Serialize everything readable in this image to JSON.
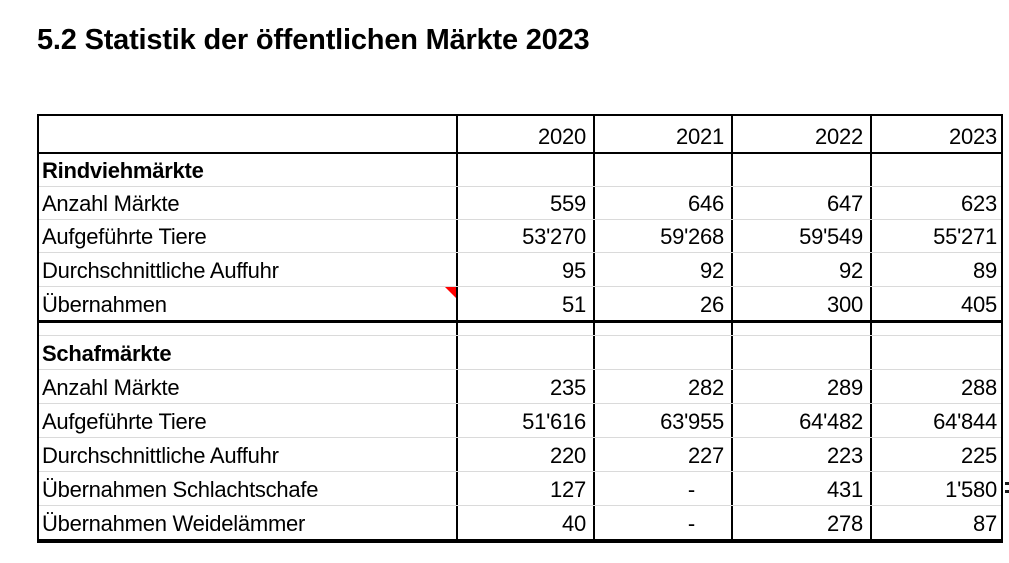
{
  "title": "5.2 Statistik der öffentlichen Märkte 2023",
  "table": {
    "year_columns": [
      "2020",
      "2021",
      "2022",
      "2023"
    ],
    "sections": [
      {
        "header": "Rindviehmärkte",
        "rows": [
          {
            "label": "Anzahl Märkte",
            "values": [
              "559",
              "646",
              "647",
              "623"
            ]
          },
          {
            "label": "Aufgeführte Tiere",
            "values": [
              "53'270",
              "59'268",
              "59'549",
              "55'271"
            ]
          },
          {
            "label": "Durchschnittliche Auffuhr",
            "values": [
              "95",
              "92",
              "92",
              "89"
            ]
          },
          {
            "label": "Übernahmen",
            "values": [
              "51",
              "26",
              "300",
              "405"
            ],
            "has_comment_marker": true
          }
        ]
      },
      {
        "header": "Schafmärkte",
        "rows": [
          {
            "label": "Anzahl Märkte",
            "values": [
              "235",
              "282",
              "289",
              "288"
            ]
          },
          {
            "label": "Aufgeführte Tiere",
            "values": [
              "51'616",
              "63'955",
              "64'482",
              "64'844"
            ]
          },
          {
            "label": "Durchschnittliche Auffuhr",
            "values": [
              "220",
              "227",
              "223",
              "225"
            ]
          },
          {
            "label": "Übernahmen Schlachtschafe",
            "values": [
              "127",
              "-",
              "431",
              "1'580"
            ]
          },
          {
            "label": "Übernahmen Weidelämmer",
            "values": [
              "40",
              "-",
              "278",
              "87"
            ]
          }
        ]
      }
    ]
  },
  "colors": {
    "comment_marker": "#FF0000",
    "grid_line": "#DADADA",
    "border": "#000000",
    "text": "#000000",
    "background": "#FFFFFF"
  }
}
